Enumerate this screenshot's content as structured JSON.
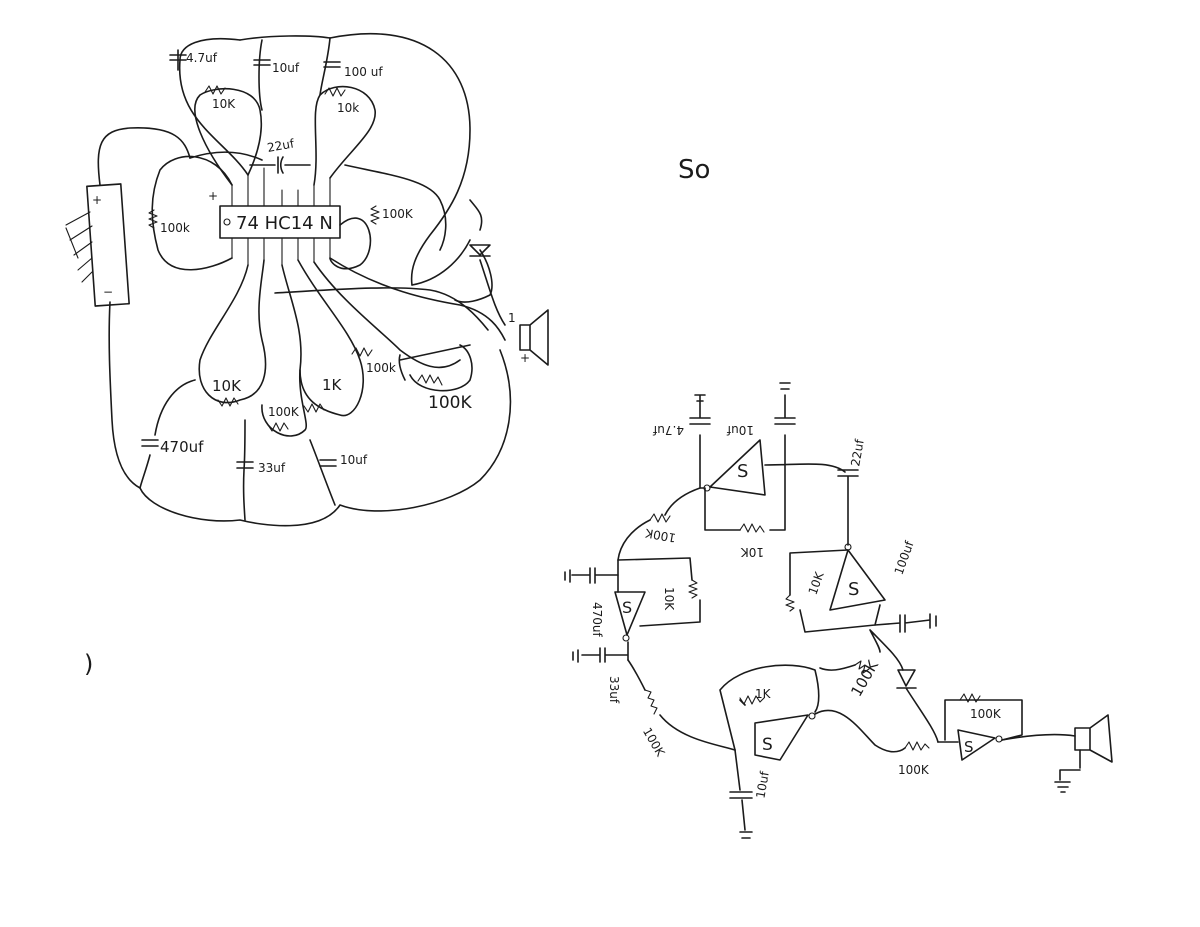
{
  "page": {
    "background": "#ffffff",
    "ink": "#1b1b1b"
  },
  "notes": {
    "so": "So",
    "one": ")"
  },
  "left": {
    "chip": "74 HC14 N",
    "battery": {
      "plus": "+",
      "minus": "−"
    },
    "caps": {
      "c_4_7": "4.7uf",
      "c_10": "10uf",
      "c_100": "100 uf",
      "c_22": "22uf",
      "c_470": "470uf",
      "c_33": "33uf",
      "c_10b": "10uf"
    },
    "resistors": {
      "r_10k_a": "10K",
      "r_10k_b": "10k",
      "r_100k_left": "100k",
      "r_100k_right": "100K",
      "r_10k_c": "10K",
      "r_100k_d": "100K",
      "r_1k": "1K",
      "r_100k_e": "100k",
      "r_100k_big": "100K"
    },
    "marks": {
      "plus": "+",
      "one": "1",
      "spk_plus": "+"
    }
  },
  "right": {
    "labels": {
      "c1": "4.7uf",
      "c2": "10uf",
      "c3": "22uf",
      "c4": "100uf",
      "c5": "470uf",
      "c6": "33uf",
      "c7": "10uf",
      "r1": "100K",
      "r2": "10K",
      "r3": "10K",
      "r4": "10K",
      "r5": "100K",
      "r6": "100K",
      "r7": "1K",
      "r8": "100K",
      "r9": "100K"
    },
    "gate_symbol": "S"
  }
}
